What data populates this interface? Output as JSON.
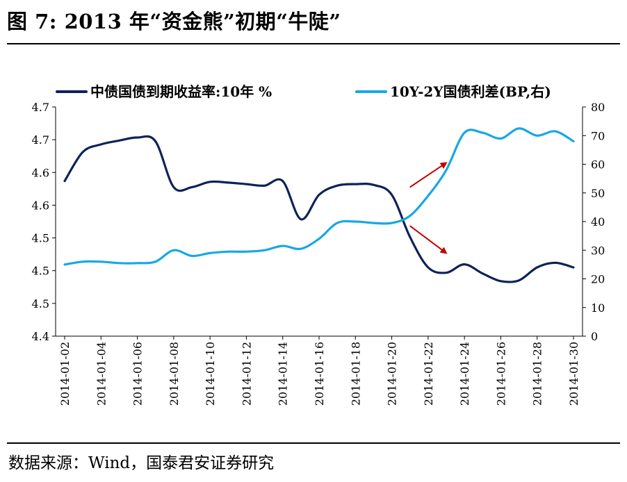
{
  "figure": {
    "title": "图 7: 2013 年“资金熊”初期“牛陡”",
    "source": "数据来源：Wind，国泰君安证券研究"
  },
  "chart_data": {
    "type": "line",
    "x": [
      "2014-01-02",
      "2014-01-04",
      "2014-01-06",
      "2014-01-08",
      "2014-01-10",
      "2014-01-12",
      "2014-01-14",
      "2014-01-16",
      "2014-01-18",
      "2014-01-20",
      "2014-01-22",
      "2014-01-24",
      "2014-01-26",
      "2014-01-28",
      "2014-01-30"
    ],
    "y_left": {
      "tick_labels": [
        "4.4",
        "4.5",
        "4.5",
        "4.5",
        "4.6",
        "4.6",
        "4.7",
        "4.7"
      ],
      "ylim": [
        4.4,
        4.7
      ]
    },
    "y_right": {
      "tick_labels": [
        "0",
        "10",
        "20",
        "30",
        "40",
        "50",
        "60",
        "70",
        "80"
      ],
      "ylim": [
        0,
        80
      ]
    },
    "legend_position": "top",
    "grid": false,
    "series": [
      {
        "name": "中债国债到期收益率:10年 %",
        "axis": "left",
        "color": "#0d2357",
        "points": [
          [
            "2014-01-02",
            4.603
          ],
          [
            "2014-01-03",
            4.641
          ],
          [
            "2014-01-04",
            4.651
          ],
          [
            "2014-01-05",
            4.656
          ],
          [
            "2014-01-06",
            4.66
          ],
          [
            "2014-01-07",
            4.655
          ],
          [
            "2014-01-08",
            4.595
          ],
          [
            "2014-01-09",
            4.595
          ],
          [
            "2014-01-10",
            4.602
          ],
          [
            "2014-01-11",
            4.601
          ],
          [
            "2014-01-12",
            4.599
          ],
          [
            "2014-01-13",
            4.597
          ],
          [
            "2014-01-14",
            4.603
          ],
          [
            "2014-01-15",
            4.553
          ],
          [
            "2014-01-16",
            4.585
          ],
          [
            "2014-01-17",
            4.597
          ],
          [
            "2014-01-18",
            4.599
          ],
          [
            "2014-01-19",
            4.598
          ],
          [
            "2014-01-20",
            4.585
          ],
          [
            "2014-01-21",
            4.53
          ],
          [
            "2014-01-22",
            4.49
          ],
          [
            "2014-01-23",
            4.483
          ],
          [
            "2014-01-24",
            4.494
          ],
          [
            "2014-01-25",
            4.482
          ],
          [
            "2014-01-26",
            4.472
          ],
          [
            "2014-01-27",
            4.473
          ],
          [
            "2014-01-28",
            4.49
          ],
          [
            "2014-01-29",
            4.496
          ],
          [
            "2014-01-30",
            4.49
          ]
        ]
      },
      {
        "name": "10Y-2Y国债利差(BP,右)",
        "axis": "right",
        "color": "#17a8e3",
        "points": [
          [
            "2014-01-02",
            25.0
          ],
          [
            "2014-01-03",
            26.0
          ],
          [
            "2014-01-04",
            26.0
          ],
          [
            "2014-01-05",
            25.5
          ],
          [
            "2014-01-06",
            25.5
          ],
          [
            "2014-01-07",
            26.0
          ],
          [
            "2014-01-08",
            30.0
          ],
          [
            "2014-01-09",
            28.0
          ],
          [
            "2014-01-10",
            29.0
          ],
          [
            "2014-01-11",
            29.5
          ],
          [
            "2014-01-12",
            29.5
          ],
          [
            "2014-01-13",
            30.0
          ],
          [
            "2014-01-14",
            31.5
          ],
          [
            "2014-01-15",
            30.5
          ],
          [
            "2014-01-16",
            34.0
          ],
          [
            "2014-01-17",
            39.5
          ],
          [
            "2014-01-18",
            40.0
          ],
          [
            "2014-01-19",
            39.5
          ],
          [
            "2014-01-20",
            39.5
          ],
          [
            "2014-01-21",
            42.0
          ],
          [
            "2014-01-22",
            49.0
          ],
          [
            "2014-01-23",
            58.0
          ],
          [
            "2014-01-24",
            71.0
          ],
          [
            "2014-01-25",
            71.0
          ],
          [
            "2014-01-26",
            69.0
          ],
          [
            "2014-01-27",
            72.5
          ],
          [
            "2014-01-28",
            70.0
          ],
          [
            "2014-01-29",
            71.5
          ],
          [
            "2014-01-30",
            68.0
          ]
        ]
      }
    ],
    "annotations": [
      {
        "type": "arrow",
        "color": "#c00000",
        "from": [
          "2014-01-21",
          52.0
        ],
        "to": [
          "2014-01-23",
          60.5
        ]
      },
      {
        "type": "arrow",
        "color": "#c00000",
        "from": [
          "2014-01-21",
          38.5
        ],
        "to": [
          "2014-01-23",
          29.0
        ]
      }
    ]
  }
}
